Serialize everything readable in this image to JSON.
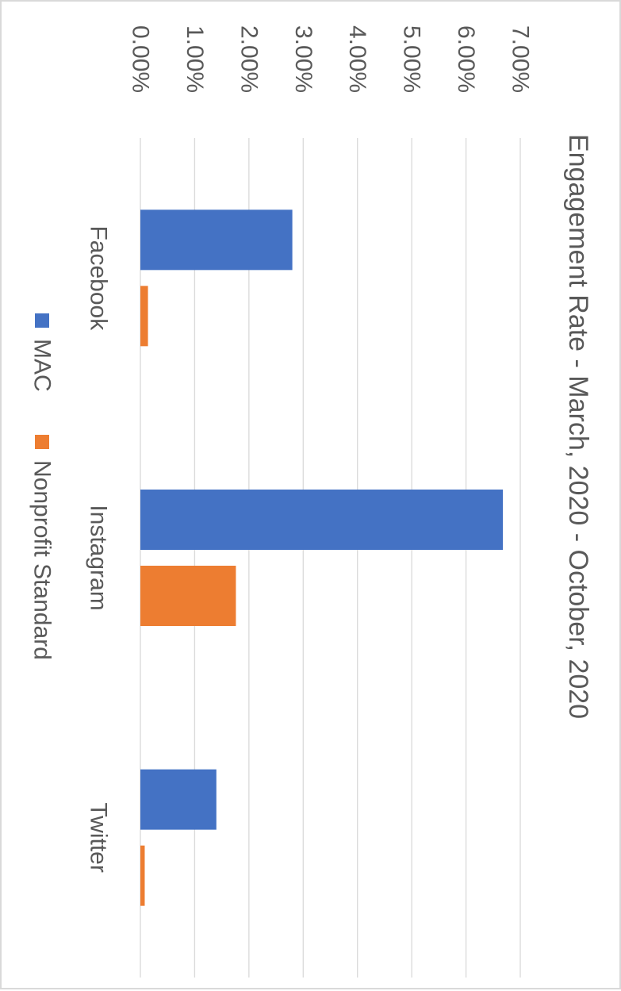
{
  "chart_data": {
    "type": "bar",
    "orientation": "rotated-90-clockwise",
    "title": "Engagement Rate - March, 2020 - October, 2020",
    "categories": [
      "Facebook",
      "Instagram",
      "Twitter"
    ],
    "series": [
      {
        "name": "MAC",
        "values": [
          0.028,
          0.0668,
          0.014
        ],
        "color": "#4472c4"
      },
      {
        "name": "Nonprofit Standard",
        "values": [
          0.0014,
          0.0176,
          0.0008
        ],
        "color": "#ed7d31"
      }
    ],
    "ylim": [
      0,
      0.07
    ],
    "yticks": [
      "0.00%",
      "1.00%",
      "2.00%",
      "3.00%",
      "4.00%",
      "5.00%",
      "6.00%",
      "7.00%"
    ],
    "grid": true,
    "gridline_color": "#d9d9d9",
    "legend_position": "bottom"
  }
}
